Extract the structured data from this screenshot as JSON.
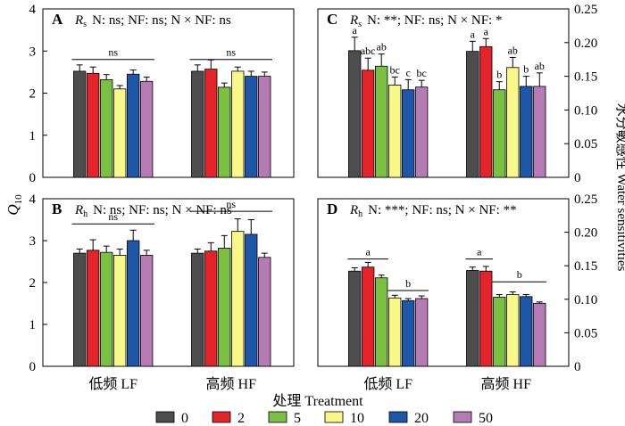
{
  "figure": {
    "y_left_label_main": "Q",
    "y_left_label_sub": "10",
    "y_right_label": "水分敏感性 Water sensitivities",
    "x_label": "处理 Treatment"
  },
  "legend": {
    "items": [
      {
        "label": "0",
        "color": "#4d4d4d"
      },
      {
        "label": "2",
        "color": "#e3242b"
      },
      {
        "label": "5",
        "color": "#7ac143"
      },
      {
        "label": "10",
        "color": "#f7f78a"
      },
      {
        "label": "20",
        "color": "#1f57a8"
      },
      {
        "label": "50",
        "color": "#b57bb5"
      }
    ]
  },
  "chart_data": [
    {
      "panel": "A",
      "type": "bar",
      "title_var": "R",
      "title_sub": "s",
      "stats": "N: ns; NF: ns; N × NF: ns",
      "categories": [
        "低频 LF",
        "高频 HF"
      ],
      "ylim": [
        0,
        4
      ],
      "yticks": [
        0,
        1,
        2,
        3,
        4
      ],
      "y_axis": "left",
      "series": [
        {
          "name": "0",
          "values": [
            2.52,
            2.52
          ],
          "errors": [
            0.15,
            0.15
          ]
        },
        {
          "name": "2",
          "values": [
            2.47,
            2.57
          ],
          "errors": [
            0.15,
            0.22
          ]
        },
        {
          "name": "5",
          "values": [
            2.32,
            2.14
          ],
          "errors": [
            0.12,
            0.1
          ]
        },
        {
          "name": "10",
          "values": [
            2.1,
            2.52
          ],
          "errors": [
            0.08,
            0.1
          ]
        },
        {
          "name": "20",
          "values": [
            2.45,
            2.4
          ],
          "errors": [
            0.1,
            0.12
          ]
        },
        {
          "name": "50",
          "values": [
            2.28,
            2.4
          ],
          "errors": [
            0.1,
            0.1
          ]
        }
      ],
      "annotations": [
        {
          "text": "ns",
          "type": "group_line",
          "category": 0,
          "y": 2.8
        },
        {
          "text": "ns",
          "type": "group_line",
          "category": 1,
          "y": 2.8
        }
      ]
    },
    {
      "panel": "B",
      "type": "bar",
      "title_var": "R",
      "title_sub": "h",
      "stats": "N: ns; NF: ns; N × NF: ns",
      "categories": [
        "低频 LF",
        "高频 HF"
      ],
      "ylim": [
        0,
        4
      ],
      "yticks": [
        0,
        1,
        2,
        3,
        4
      ],
      "y_axis": "left",
      "series": [
        {
          "name": "0",
          "values": [
            2.7,
            2.7
          ],
          "errors": [
            0.1,
            0.1
          ]
        },
        {
          "name": "2",
          "values": [
            2.77,
            2.75
          ],
          "errors": [
            0.25,
            0.2
          ]
        },
        {
          "name": "5",
          "values": [
            2.72,
            2.82
          ],
          "errors": [
            0.15,
            0.3
          ]
        },
        {
          "name": "10",
          "values": [
            2.65,
            3.22
          ],
          "errors": [
            0.15,
            0.3
          ]
        },
        {
          "name": "20",
          "values": [
            3.0,
            3.15
          ],
          "errors": [
            0.25,
            0.35
          ]
        },
        {
          "name": "50",
          "values": [
            2.65,
            2.6
          ],
          "errors": [
            0.12,
            0.1
          ]
        }
      ],
      "annotations": [
        {
          "text": "ns",
          "type": "group_line",
          "category": 0,
          "y": 3.4
        },
        {
          "text": "ns",
          "type": "group_line",
          "category": 1,
          "y": 3.7
        }
      ]
    },
    {
      "panel": "C",
      "type": "bar",
      "title_var": "R",
      "title_sub": "s",
      "stats": "N: **; NF: ns; N × NF: *",
      "categories": [
        "低频 LF",
        "高频 HF"
      ],
      "ylim": [
        0,
        0.25
      ],
      "yticks": [
        "0",
        "0.05",
        "0.10",
        "0.15",
        "0.20",
        "0.25"
      ],
      "ytick_values": [
        0,
        0.05,
        0.1,
        0.15,
        0.2,
        0.25
      ],
      "y_axis": "right",
      "series": [
        {
          "name": "0",
          "values": [
            0.188,
            0.187
          ],
          "errors": [
            0.02,
            0.015
          ]
        },
        {
          "name": "2",
          "values": [
            0.159,
            0.194
          ],
          "errors": [
            0.018,
            0.012
          ]
        },
        {
          "name": "5",
          "values": [
            0.165,
            0.13
          ],
          "errors": [
            0.018,
            0.012
          ]
        },
        {
          "name": "10",
          "values": [
            0.137,
            0.163
          ],
          "errors": [
            0.012,
            0.015
          ]
        },
        {
          "name": "20",
          "values": [
            0.13,
            0.135
          ],
          "errors": [
            0.015,
            0.015
          ]
        },
        {
          "name": "50",
          "values": [
            0.134,
            0.135
          ],
          "errors": [
            0.01,
            0.02
          ]
        }
      ],
      "letters": [
        [
          "a",
          "abc",
          "ab",
          "bc",
          "c",
          "bc"
        ],
        [
          "a",
          "a",
          "b",
          "ab",
          "b",
          "ab"
        ]
      ]
    },
    {
      "panel": "D",
      "type": "bar",
      "title_var": "R",
      "title_sub": "h",
      "stats": "N: ***; NF: ns; N × NF: **",
      "categories": [
        "低频 LF",
        "高频 HF"
      ],
      "ylim": [
        0,
        0.25
      ],
      "yticks": [
        "0",
        "0.05",
        "0.10",
        "0.15",
        "0.20",
        "0.25"
      ],
      "ytick_values": [
        0,
        0.05,
        0.1,
        0.15,
        0.2,
        0.25
      ],
      "y_axis": "right",
      "series": [
        {
          "name": "0",
          "values": [
            0.142,
            0.143
          ],
          "errors": [
            0.005,
            0.005
          ]
        },
        {
          "name": "2",
          "values": [
            0.148,
            0.142
          ],
          "errors": [
            0.007,
            0.007
          ]
        },
        {
          "name": "5",
          "values": [
            0.132,
            0.103
          ],
          "errors": [
            0.004,
            0.004
          ]
        },
        {
          "name": "10",
          "values": [
            0.102,
            0.107
          ],
          "errors": [
            0.004,
            0.004
          ]
        },
        {
          "name": "20",
          "values": [
            0.098,
            0.104
          ],
          "errors": [
            0.003,
            0.003
          ]
        },
        {
          "name": "50",
          "values": [
            0.101,
            0.094
          ],
          "errors": [
            0.004,
            0.002
          ]
        }
      ],
      "annotations": [
        {
          "text": "a",
          "type": "span_line",
          "category": 0,
          "from": 0,
          "to": 2,
          "y": 0.16
        },
        {
          "text": "b",
          "type": "span_line",
          "category": 0,
          "from": 3,
          "to": 5,
          "y": 0.113
        },
        {
          "text": "a",
          "type": "span_line",
          "category": 1,
          "from": 0,
          "to": 1,
          "y": 0.16
        },
        {
          "text": "b",
          "type": "span_line",
          "category": 1,
          "from": 2,
          "to": 5,
          "y": 0.126
        }
      ]
    }
  ]
}
